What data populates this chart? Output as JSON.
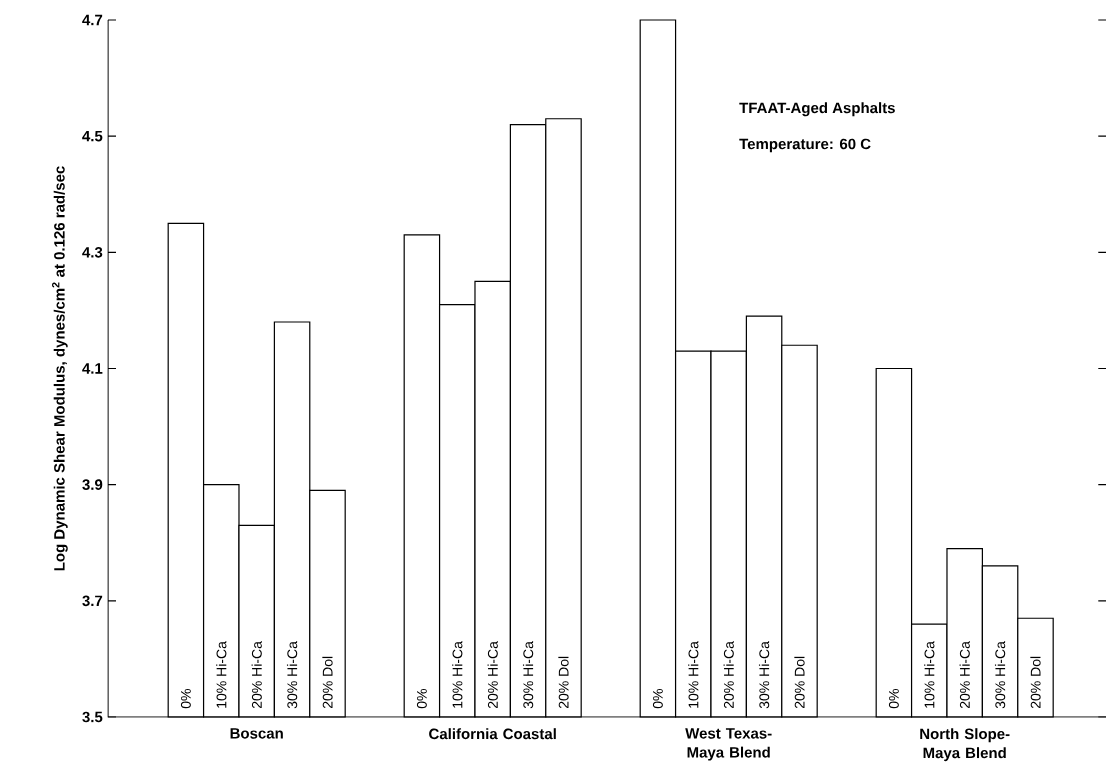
{
  "chart_data": {
    "type": "bar",
    "categories": [
      "Boscan",
      "California Coastal",
      "West Texas-Maya Blend",
      "North Slope-Maya Blend"
    ],
    "series": [
      {
        "name": "0%",
        "color": "#ffffff",
        "values": [
          4.35,
          4.33,
          4.7,
          4.1
        ]
      },
      {
        "name": "10% Hi-Ca",
        "color": "#ffffff",
        "values": [
          3.9,
          4.21,
          4.13,
          3.66
        ]
      },
      {
        "name": "20% Hi-Ca",
        "color": "#ffffff",
        "values": [
          3.83,
          4.25,
          4.13,
          3.79
        ]
      },
      {
        "name": "30% Hi-Ca",
        "color": "#ffffff",
        "values": [
          4.18,
          4.52,
          4.19,
          3.76
        ]
      },
      {
        "name": "20% Dol",
        "color": "#ffffff",
        "values": [
          3.89,
          4.53,
          4.14,
          3.67
        ]
      }
    ],
    "ylabel": "Log Dynamic Shear Modulus, dynes/cm$^{2}$ at 0.126 rad/sec",
    "ylim": [
      3.5,
      4.7
    ],
    "yticks": [
      3.5,
      3.7,
      3.9,
      4.1,
      4.3,
      4.5,
      4.7
    ],
    "annotations": [
      "TFAAT-Aged Asphalts",
      "Temperature: 60 C"
    ]
  }
}
